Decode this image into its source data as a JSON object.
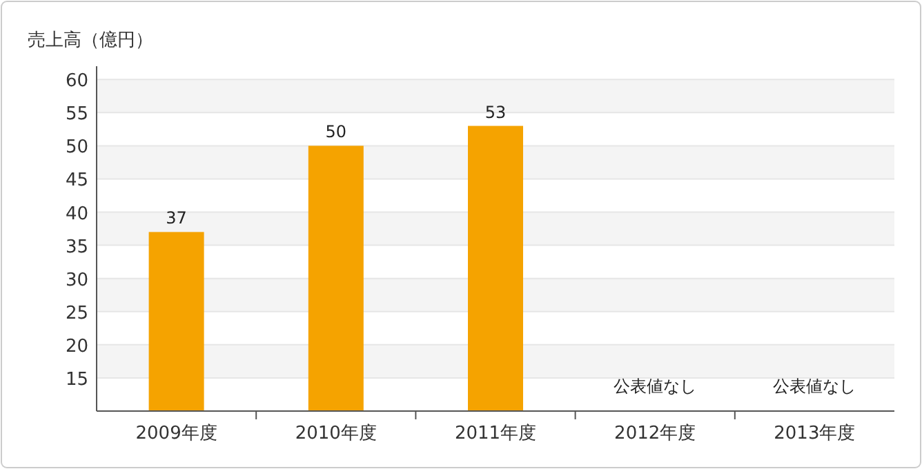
{
  "chart_data": {
    "type": "bar",
    "ylabel": "売上高（億円）",
    "categories": [
      "2009年度",
      "2010年度",
      "2011年度",
      "2012年度",
      "2013年度"
    ],
    "values": [
      37,
      50,
      53,
      null,
      null
    ],
    "color": "#f5a300",
    "data_labels": true,
    "ylim": [
      10,
      62
    ],
    "yticks": [
      15,
      20,
      25,
      30,
      35,
      40,
      45,
      50,
      55,
      60
    ],
    "grid": "y",
    "annotations": [
      "公表値なし",
      "公表値なし"
    ]
  }
}
